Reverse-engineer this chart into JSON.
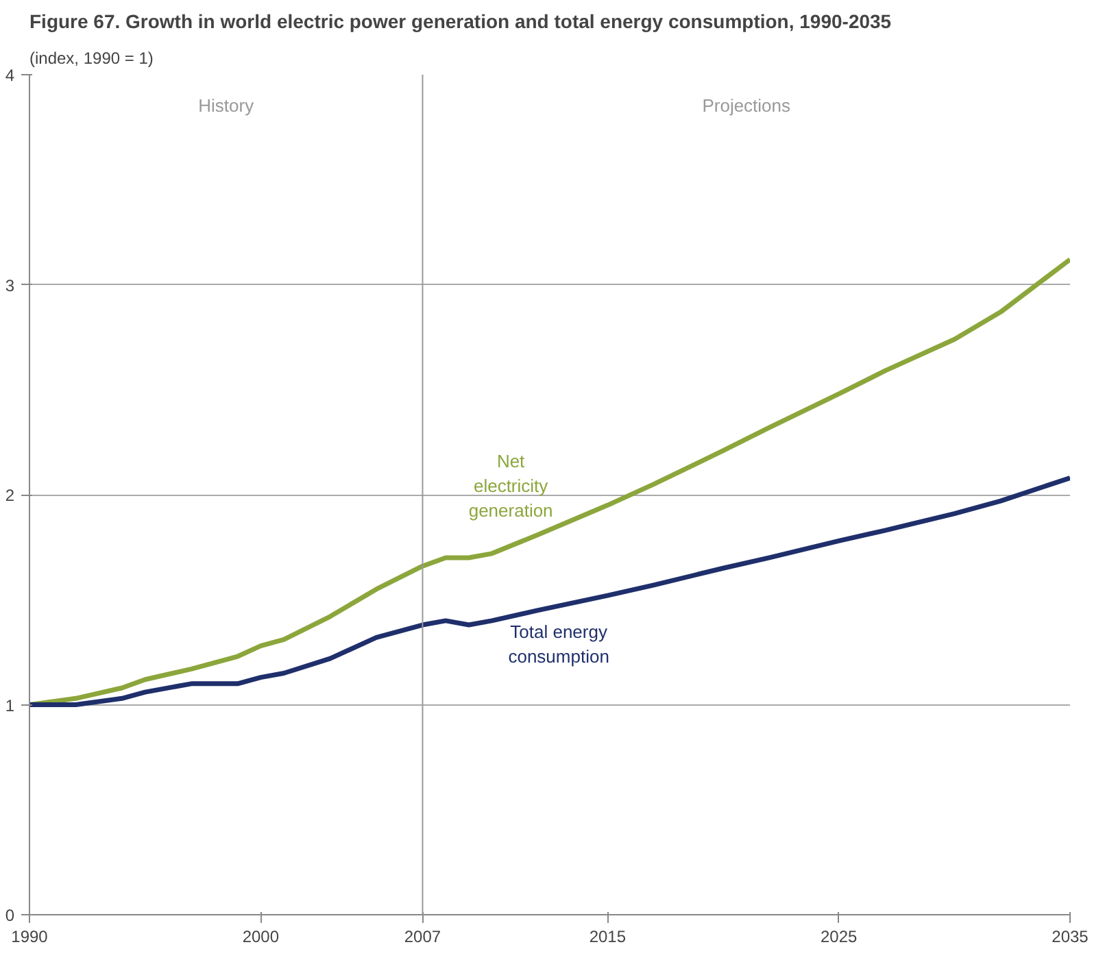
{
  "chart_data": {
    "type": "line",
    "title": "Figure  67. Growth in world electric power generation and total energy consumption, 1990-2035",
    "subtitle": "(index, 1990 = 1)",
    "x": [
      1990,
      1992,
      1994,
      1995,
      1997,
      1999,
      2000,
      2001,
      2003,
      2005,
      2007,
      2008,
      2009,
      2010,
      2012,
      2015,
      2017,
      2020,
      2022,
      2025,
      2027,
      2030,
      2032,
      2035
    ],
    "series": [
      {
        "name": "Net electricity generation",
        "color": "#8ca63c",
        "values": [
          1.0,
          1.03,
          1.08,
          1.12,
          1.17,
          1.23,
          1.28,
          1.31,
          1.42,
          1.55,
          1.66,
          1.7,
          1.7,
          1.72,
          1.81,
          1.95,
          2.05,
          2.21,
          2.32,
          2.48,
          2.59,
          2.74,
          2.87,
          3.12
        ]
      },
      {
        "name": "Total energy consumption",
        "color": "#1f2f6b",
        "values": [
          1.0,
          1.0,
          1.03,
          1.06,
          1.1,
          1.1,
          1.13,
          1.15,
          1.22,
          1.32,
          1.38,
          1.4,
          1.38,
          1.4,
          1.45,
          1.52,
          1.57,
          1.65,
          1.7,
          1.78,
          1.83,
          1.91,
          1.97,
          2.08
        ]
      }
    ],
    "xlim": [
      1990,
      2035
    ],
    "xticks": [
      1990,
      2000,
      2007,
      2015,
      2025,
      2035
    ],
    "ylim": [
      0,
      4
    ],
    "yticks": [
      0,
      1,
      2,
      3,
      4
    ],
    "grid": "y",
    "marker": "none",
    "line_style": "solid",
    "ref_lines": [
      {
        "axis": "x",
        "value": 2007,
        "color": "#999999"
      }
    ],
    "annotations": [
      "History",
      "Projections"
    ]
  }
}
